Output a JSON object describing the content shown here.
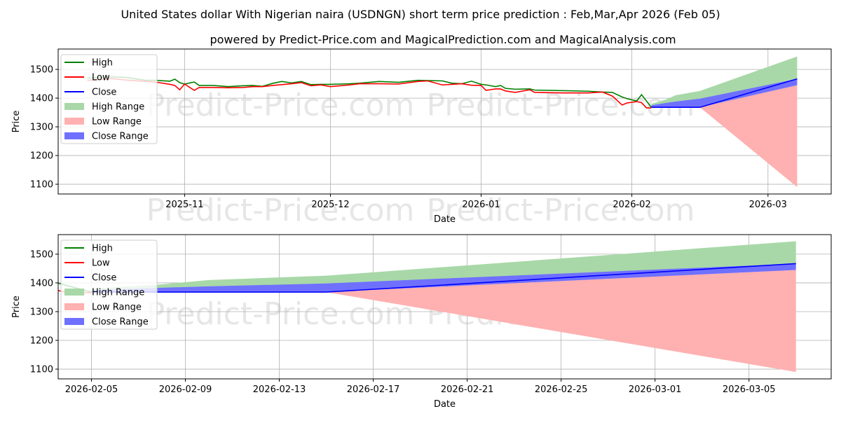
{
  "title": "United States dollar With Nigerian naira (USDNGN) short term price prediction : Feb,Mar,Apr 2026 (Feb 05)",
  "subtitle": "powered by Predict-Price.com and MagicalPrediction.com and MagicalAnalysis.com",
  "watermark": "Predict-Price.com",
  "colors": {
    "high": "#008000",
    "low": "#ff0000",
    "close": "#0000ff",
    "high_range": "#a8d8a8",
    "low_range": "#ffb0b0",
    "close_range": "#7070ff"
  },
  "chart_data": [
    {
      "type": "line",
      "xlabel": "Date",
      "ylabel": "Price",
      "xlim": [
        "2025-10-06",
        "2026-03-14"
      ],
      "ylim": [
        1066,
        1571
      ],
      "yticks": [
        1100,
        1200,
        1300,
        1400,
        1500
      ],
      "xticks": [
        {
          "date": "2025-11-01",
          "label": "2025-11"
        },
        {
          "date": "2025-12-01",
          "label": "2025-12"
        },
        {
          "date": "2026-01-01",
          "label": "2026-01"
        },
        {
          "date": "2026-02-01",
          "label": "2026-02"
        },
        {
          "date": "2026-03-01",
          "label": "2026-03"
        }
      ],
      "grid": true,
      "legend": {
        "placement": "top-left",
        "entries": [
          "High",
          "Low",
          "Close",
          "High Range",
          "Low Range",
          "Close Range"
        ]
      }
    },
    {
      "type": "line",
      "xlabel": "Date",
      "ylabel": "Price",
      "xlim": [
        "2026-02-03T14:00",
        "2026-03-08T12:00"
      ],
      "ylim": [
        1066,
        1568
      ],
      "yticks": [
        1100,
        1200,
        1300,
        1400,
        1500
      ],
      "xticks": [
        {
          "date": "2026-02-05",
          "label": "2026-02-05"
        },
        {
          "date": "2026-02-09",
          "label": "2026-02-09"
        },
        {
          "date": "2026-02-13",
          "label": "2026-02-13"
        },
        {
          "date": "2026-02-17",
          "label": "2026-02-17"
        },
        {
          "date": "2026-02-21",
          "label": "2026-02-21"
        },
        {
          "date": "2026-02-25",
          "label": "2026-02-25"
        },
        {
          "date": "2026-03-01",
          "label": "2026-03-01"
        },
        {
          "date": "2026-03-05",
          "label": "2026-03-05"
        }
      ],
      "grid": true,
      "legend": {
        "placement": "top-left",
        "entries": [
          "High",
          "Low",
          "Close",
          "High Range",
          "Low Range",
          "Close Range"
        ]
      }
    }
  ],
  "history": {
    "dates": [
      "2025-10-12",
      "2025-10-17",
      "2025-10-20",
      "2025-10-24",
      "2025-10-26",
      "2025-10-29",
      "2025-10-30",
      "2025-10-31",
      "2025-11-01",
      "2025-11-03",
      "2025-11-04",
      "2025-11-07",
      "2025-11-10",
      "2025-11-13",
      "2025-11-15",
      "2025-11-17",
      "2025-11-19",
      "2025-11-21",
      "2025-11-23",
      "2025-11-25",
      "2025-11-27",
      "2025-11-29",
      "2025-12-01",
      "2025-12-03",
      "2025-12-05",
      "2025-12-07",
      "2025-12-11",
      "2025-12-15",
      "2025-12-19",
      "2025-12-21",
      "2025-12-24",
      "2025-12-26",
      "2025-12-28",
      "2025-12-30",
      "2026-01-01",
      "2026-01-02",
      "2026-01-04",
      "2026-01-05",
      "2026-01-06",
      "2026-01-08",
      "2026-01-11",
      "2026-01-12",
      "2026-01-18",
      "2026-01-23",
      "2026-01-26",
      "2026-01-28",
      "2026-01-30",
      "2026-01-31",
      "2026-02-02",
      "2026-02-03",
      "2026-02-04",
      "2026-02-05"
    ],
    "high": [
      1470,
      1474,
      1472,
      1462,
      1462,
      1459,
      1466,
      1454,
      1449,
      1456,
      1444,
      1444,
      1440,
      1443,
      1444,
      1441,
      1451,
      1458,
      1453,
      1458,
      1447,
      1448,
      1448,
      1449,
      1450,
      1452,
      1458,
      1455,
      1462,
      1461,
      1460,
      1452,
      1450,
      1459,
      1448,
      1446,
      1440,
      1444,
      1434,
      1431,
      1432,
      1428,
      1426,
      1424,
      1421,
      1420,
      1404,
      1398,
      1390,
      1412,
      1390,
      1368
    ],
    "low": [
      1462,
      1468,
      1463,
      1458,
      1456,
      1448,
      1444,
      1429,
      1449,
      1427,
      1437,
      1437,
      1436,
      1437,
      1440,
      1440,
      1444,
      1447,
      1450,
      1454,
      1443,
      1446,
      1440,
      1443,
      1446,
      1450,
      1450,
      1449,
      1458,
      1460,
      1446,
      1448,
      1450,
      1445,
      1444,
      1427,
      1432,
      1432,
      1425,
      1420,
      1429,
      1420,
      1418,
      1418,
      1421,
      1407,
      1376,
      1383,
      1388,
      1384,
      1366,
      1366
    ]
  },
  "prediction": {
    "dates": [
      "2026-02-05",
      "2026-02-08",
      "2026-02-10",
      "2026-02-15",
      "2026-03-07"
    ],
    "close": [
      1368,
      1368,
      1368,
      1368,
      1467
    ],
    "high_range_upper": [
      1380,
      1395,
      1410,
      1425,
      1545
    ],
    "high_range_lower": [
      1368,
      1375,
      1380,
      1395,
      1467
    ],
    "close_range_upper": [
      1375,
      1383,
      1388,
      1398,
      1467
    ],
    "close_range_lower": [
      1368,
      1368,
      1368,
      1368,
      1445
    ],
    "low_range_upper": [
      1368,
      1368,
      1368,
      1368,
      1445
    ],
    "low_range_lower": [
      1368,
      1368,
      1368,
      1368,
      1090
    ]
  }
}
